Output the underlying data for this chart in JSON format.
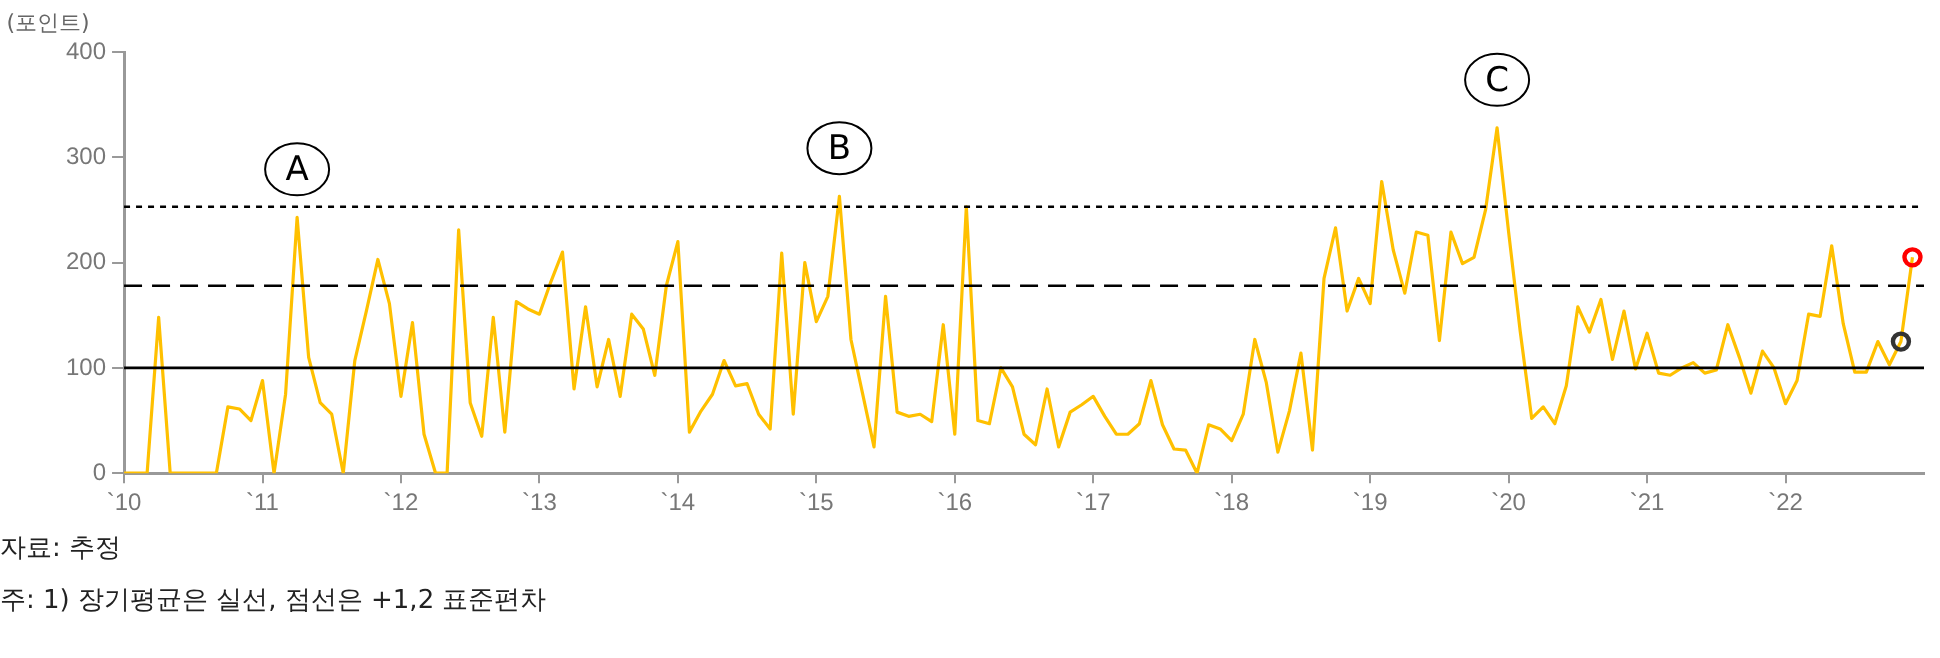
{
  "chart_data": {
    "type": "line",
    "ylabel": "(포인트)",
    "x": [
      "2010-01",
      "2010-02",
      "2010-03",
      "2010-04",
      "2010-05",
      "2010-06",
      "2010-07",
      "2010-08",
      "2010-09",
      "2010-10",
      "2010-11",
      "2010-12",
      "2011-01",
      "2011-02",
      "2011-03",
      "2011-04",
      "2011-05",
      "2011-06",
      "2011-07",
      "2011-08",
      "2011-09",
      "2011-10",
      "2011-11",
      "2011-12",
      "2012-01",
      "2012-02",
      "2012-03",
      "2012-04",
      "2012-05",
      "2012-06",
      "2012-07",
      "2012-08",
      "2012-09",
      "2012-10",
      "2012-11",
      "2012-12",
      "2013-01",
      "2013-02",
      "2013-03",
      "2013-04",
      "2013-05",
      "2013-06",
      "2013-07",
      "2013-08",
      "2013-09",
      "2013-10",
      "2013-11",
      "2013-12",
      "2014-01",
      "2014-02",
      "2014-03",
      "2014-04",
      "2014-05",
      "2014-06",
      "2014-07",
      "2014-08",
      "2014-09",
      "2014-10",
      "2014-11",
      "2014-12",
      "2015-01",
      "2015-02",
      "2015-03",
      "2015-04",
      "2015-05",
      "2015-06",
      "2015-07",
      "2015-08",
      "2015-09",
      "2015-10",
      "2015-11",
      "2015-12",
      "2016-01",
      "2016-02",
      "2016-03",
      "2016-04",
      "2016-05",
      "2016-06",
      "2016-07",
      "2016-08",
      "2016-09",
      "2016-10",
      "2016-11",
      "2016-12",
      "2017-01",
      "2017-02",
      "2017-03",
      "2017-04",
      "2017-05",
      "2017-06",
      "2017-07",
      "2017-08",
      "2017-09",
      "2017-10",
      "2017-11",
      "2017-12",
      "2018-01",
      "2018-02",
      "2018-03",
      "2018-04",
      "2018-05",
      "2018-06",
      "2018-07",
      "2018-08",
      "2018-09",
      "2018-10",
      "2018-11",
      "2018-12",
      "2019-01",
      "2019-02",
      "2019-03",
      "2019-04",
      "2019-05",
      "2019-06",
      "2019-07",
      "2019-08",
      "2019-09",
      "2019-10",
      "2019-11",
      "2019-12",
      "2020-01",
      "2020-02",
      "2020-03",
      "2020-04",
      "2020-05",
      "2020-06",
      "2020-07",
      "2020-08",
      "2020-09",
      "2020-10",
      "2020-11",
      "2020-12",
      "2021-01",
      "2021-02",
      "2021-03",
      "2021-04",
      "2021-05",
      "2021-06",
      "2021-07",
      "2021-08",
      "2021-09",
      "2021-10",
      "2021-11",
      "2021-12",
      "2022-01",
      "2022-02",
      "2022-03",
      "2022-04",
      "2022-05",
      "2022-06",
      "2022-07",
      "2022-08",
      "2022-09",
      "2022-10",
      "2022-11",
      "2022-12"
    ],
    "series": [
      {
        "color": "#ffc000",
        "marker": "none",
        "values": [
          0,
          0,
          0,
          148,
          0,
          0,
          0,
          0,
          0,
          63,
          61,
          50,
          88,
          0,
          75,
          243,
          110,
          67,
          56,
          0,
          107,
          154,
          203,
          161,
          73,
          143,
          37,
          0,
          0,
          231,
          67,
          35,
          148,
          39,
          163,
          156,
          151,
          182,
          210,
          80,
          158,
          82,
          127,
          73,
          151,
          137,
          93,
          178,
          220,
          39,
          59,
          75,
          107,
          83,
          85,
          56,
          42,
          209,
          56,
          200,
          144,
          168,
          263,
          127,
          76,
          25,
          168,
          58,
          54,
          56,
          49,
          141,
          37,
          253,
          50,
          47,
          100,
          82,
          37,
          27,
          80,
          25,
          58,
          65,
          73,
          54,
          37,
          37,
          47,
          88,
          46,
          23,
          22,
          0,
          46,
          42,
          31,
          56,
          127,
          86,
          20,
          59,
          114,
          22,
          185,
          233,
          154,
          185,
          161,
          277,
          212,
          171,
          229,
          226,
          126,
          229,
          199,
          205,
          250,
          328,
          229,
          135,
          52,
          63,
          47,
          83,
          158,
          134,
          165,
          108,
          154,
          99,
          133,
          95,
          93,
          100,
          105,
          95,
          98,
          141,
          110,
          76,
          116,
          100,
          66,
          88,
          151,
          149,
          216,
          142,
          96,
          96,
          125,
          103,
          125,
          205
        ]
      },
      {
        "type": "scatter",
        "color": "#333333",
        "marker": "circle",
        "x": [
          "2022-11"
        ],
        "values": [
          125
        ]
      },
      {
        "type": "scatter",
        "color": "#ff0000",
        "marker": "circle",
        "x": [
          "2022-12"
        ],
        "values": [
          205
        ]
      }
    ],
    "xlim": [
      "2010-01",
      "2023-01"
    ],
    "xticks": [
      {
        "value": "2010",
        "label": "`10"
      },
      {
        "value": "2011",
        "label": "`11"
      },
      {
        "value": "2012",
        "label": "`12"
      },
      {
        "value": "2013",
        "label": "`13"
      },
      {
        "value": "2014",
        "label": "`14"
      },
      {
        "value": "2015",
        "label": "`15"
      },
      {
        "value": "2016",
        "label": "`16"
      },
      {
        "value": "2017",
        "label": "`17"
      },
      {
        "value": "2018",
        "label": "`18"
      },
      {
        "value": "2019",
        "label": "`19"
      },
      {
        "value": "2020",
        "label": "`20"
      },
      {
        "value": "2021",
        "label": "`21"
      },
      {
        "value": "2022",
        "label": "`22"
      }
    ],
    "ylim": [
      0,
      400
    ],
    "yticks": [
      0,
      100,
      200,
      300,
      400
    ],
    "grid": false,
    "legend": false,
    "ref_lines": [
      {
        "axis": "y",
        "value": 100,
        "color": "#000000",
        "line_style": "solid"
      },
      {
        "axis": "y",
        "value": 178,
        "color": "#000000",
        "line_style": "dashed"
      },
      {
        "axis": "y",
        "value": 253,
        "color": "#000000",
        "line_style": "dotted"
      }
    ],
    "annotations": [
      {
        "text": "A",
        "x": "2011-04",
        "y": 243
      },
      {
        "text": "B",
        "x": "2015-03",
        "y": 263
      },
      {
        "text": "C",
        "x": "2019-12",
        "y": 328
      },
      "자료: 추정",
      "주: 1) 장기평균은 실선, 점선은 +1,2 표준편차"
    ]
  }
}
